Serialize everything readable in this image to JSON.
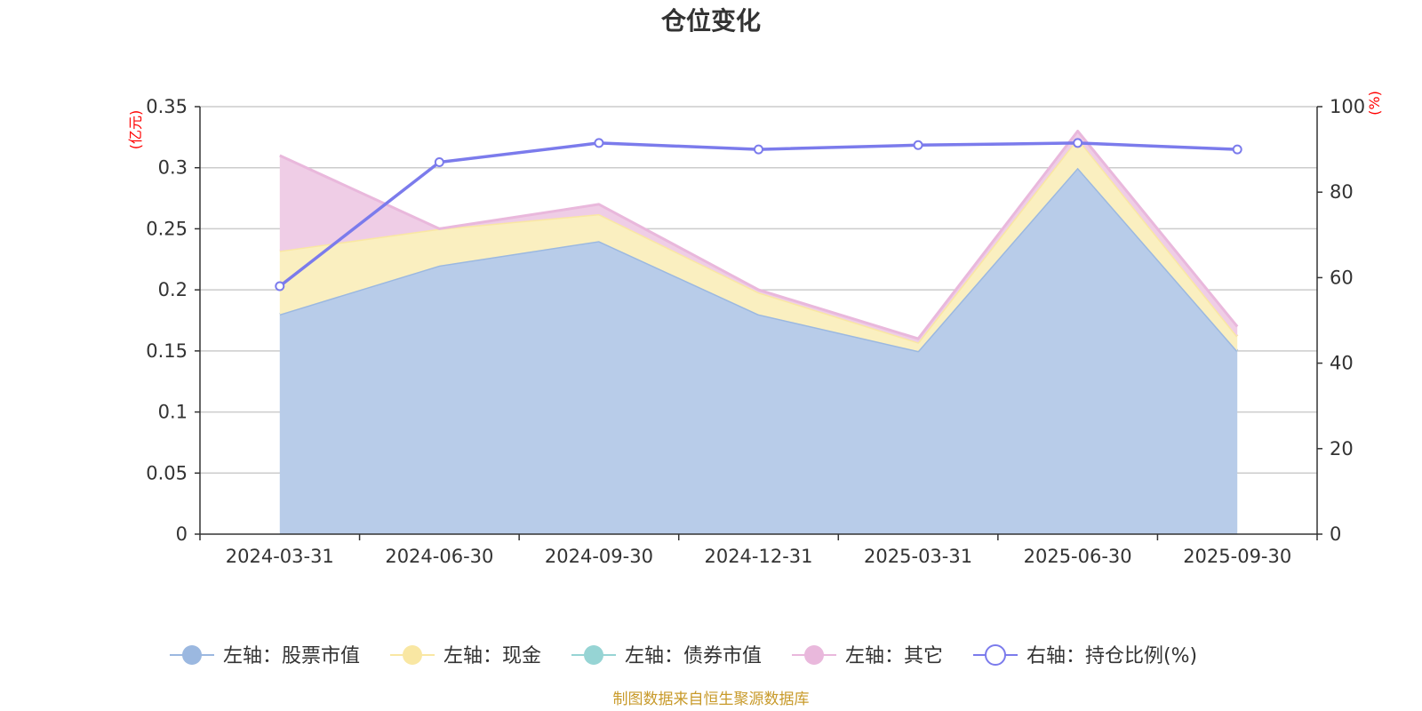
{
  "chart_data": {
    "type": "area",
    "title": "仓位变化",
    "categories": [
      "2024-03-31",
      "2024-06-30",
      "2024-09-30",
      "2024-12-31",
      "2025-03-31",
      "2025-06-30",
      "2025-09-30"
    ],
    "left_axis": {
      "unit": "(亿元)",
      "ylim": [
        0,
        0.35
      ],
      "ticks": [
        "0",
        "0.05",
        "0.1",
        "0.15",
        "0.2",
        "0.25",
        "0.3",
        "0.35"
      ]
    },
    "right_axis": {
      "unit": "(%)",
      "ylim": [
        0,
        100
      ],
      "ticks": [
        "0",
        "20",
        "40",
        "60",
        "80",
        "100"
      ]
    },
    "stacked": true,
    "grid": true,
    "legend_position": "bottom",
    "series": [
      {
        "name": "左轴：股票市值",
        "axis": "left",
        "type": "area",
        "color": "#9bb8e0",
        "fill": "#b8cce9",
        "values": [
          0.18,
          0.22,
          0.24,
          0.18,
          0.15,
          0.3,
          0.15
        ]
      },
      {
        "name": "左轴：现金",
        "axis": "left",
        "type": "area",
        "color": "#f9e7a3",
        "fill": "#faefc0",
        "values": [
          0.052,
          0.03,
          0.022,
          0.018,
          0.007,
          0.024,
          0.012
        ]
      },
      {
        "name": "左轴：债券市值",
        "axis": "left",
        "type": "area",
        "color": "#96d4d4",
        "fill": "#b4e2e2",
        "values": [
          0,
          0,
          0,
          0,
          0,
          0,
          0
        ]
      },
      {
        "name": "左轴：其它",
        "axis": "left",
        "type": "area",
        "color": "#e9b8dc",
        "fill": "#efcde6",
        "values": [
          0.078,
          0,
          0.008,
          0.002,
          0.003,
          0.006,
          0.008
        ]
      },
      {
        "name": "右轴：持仓比例(%)",
        "axis": "right",
        "type": "line",
        "color": "#7b7bec",
        "values": [
          58,
          87,
          91.5,
          90,
          91,
          91.5,
          90
        ]
      }
    ]
  },
  "source": "制图数据来自恒生聚源数据库"
}
